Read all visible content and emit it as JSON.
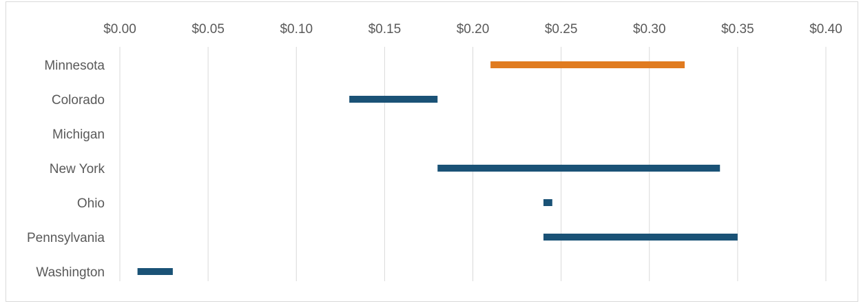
{
  "chart_data": {
    "type": "bar",
    "subtype": "floating-range",
    "orientation": "horizontal",
    "title": "",
    "xlabel": "",
    "ylabel": "",
    "x_ticks": [
      "$0.00",
      "$0.05",
      "$0.10",
      "$0.15",
      "$0.20",
      "$0.25",
      "$0.30",
      "$0.35",
      "$0.40"
    ],
    "xlim": [
      0,
      0.4
    ],
    "x_axis_position": "top",
    "grid": true,
    "legend": "none",
    "categories": [
      "Minnesota",
      "Colorado",
      "Michigan",
      "New York",
      "Ohio",
      "Pennsylvania",
      "Washington"
    ],
    "ranges": [
      {
        "state": "Minnesota",
        "low": 0.21,
        "high": 0.32,
        "highlight": true
      },
      {
        "state": "Colorado",
        "low": 0.13,
        "high": 0.18,
        "highlight": false
      },
      {
        "state": "Michigan",
        "low": null,
        "high": null,
        "highlight": false
      },
      {
        "state": "New York",
        "low": 0.18,
        "high": 0.34,
        "highlight": false
      },
      {
        "state": "Ohio",
        "low": 0.24,
        "high": 0.245,
        "highlight": false
      },
      {
        "state": "Pennsylvania",
        "low": 0.24,
        "high": 0.35,
        "highlight": false
      },
      {
        "state": "Washington",
        "low": 0.01,
        "high": 0.03,
        "highlight": false
      }
    ],
    "colors": {
      "default": "#1a5276",
      "highlight": "#e07b1f",
      "grid": "#d9d9d9",
      "text": "#595959"
    }
  }
}
